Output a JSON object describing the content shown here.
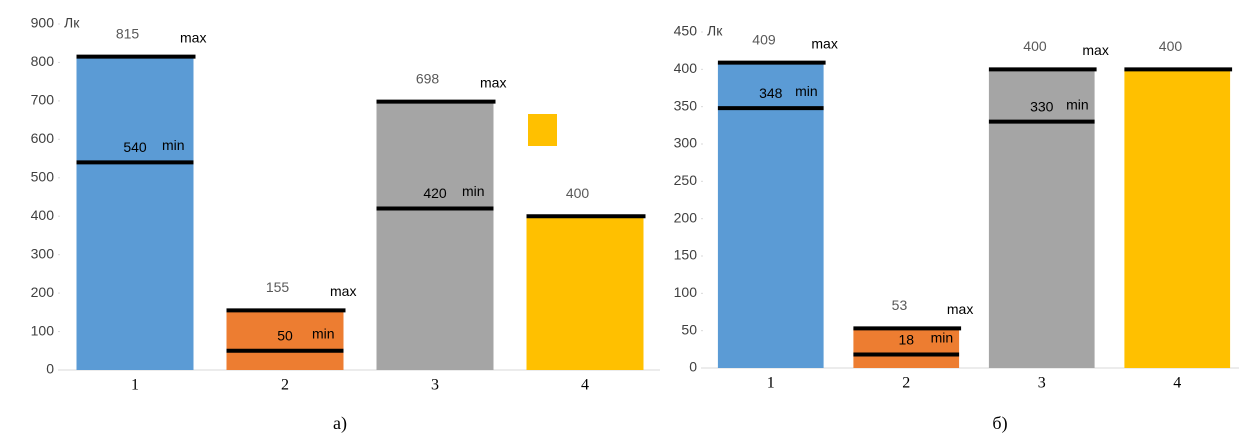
{
  "chart_data": [
    {
      "type": "bar",
      "y_unit": "Лк",
      "caption": "а)",
      "categories": [
        "1",
        "2",
        "3",
        "4"
      ],
      "values": [
        815,
        155,
        698,
        400
      ],
      "min_values": [
        540,
        50,
        420,
        null
      ],
      "colors": [
        "#5b9bd5",
        "#ed7d31",
        "#a5a5a5",
        "#ffc000"
      ],
      "max_label": "max",
      "min_label": "min",
      "max_label_shown": [
        true,
        true,
        true,
        false
      ],
      "ylim": [
        0,
        900
      ],
      "yticks": [
        0,
        100,
        200,
        300,
        400,
        500,
        600,
        700,
        800,
        900
      ]
    },
    {
      "type": "bar",
      "y_unit": "Лк",
      "caption": "б)",
      "categories": [
        "1",
        "2",
        "3",
        "4"
      ],
      "values": [
        409,
        53,
        400,
        400
      ],
      "min_values": [
        348,
        18,
        330,
        null
      ],
      "colors": [
        "#5b9bd5",
        "#ed7d31",
        "#a5a5a5",
        "#ffc000"
      ],
      "max_label": "max",
      "min_label": "min",
      "max_label_shown": [
        true,
        true,
        true,
        false
      ],
      "ylim": [
        0,
        450
      ],
      "yticks": [
        0,
        50,
        100,
        150,
        200,
        250,
        300,
        350,
        400,
        450
      ]
    }
  ]
}
